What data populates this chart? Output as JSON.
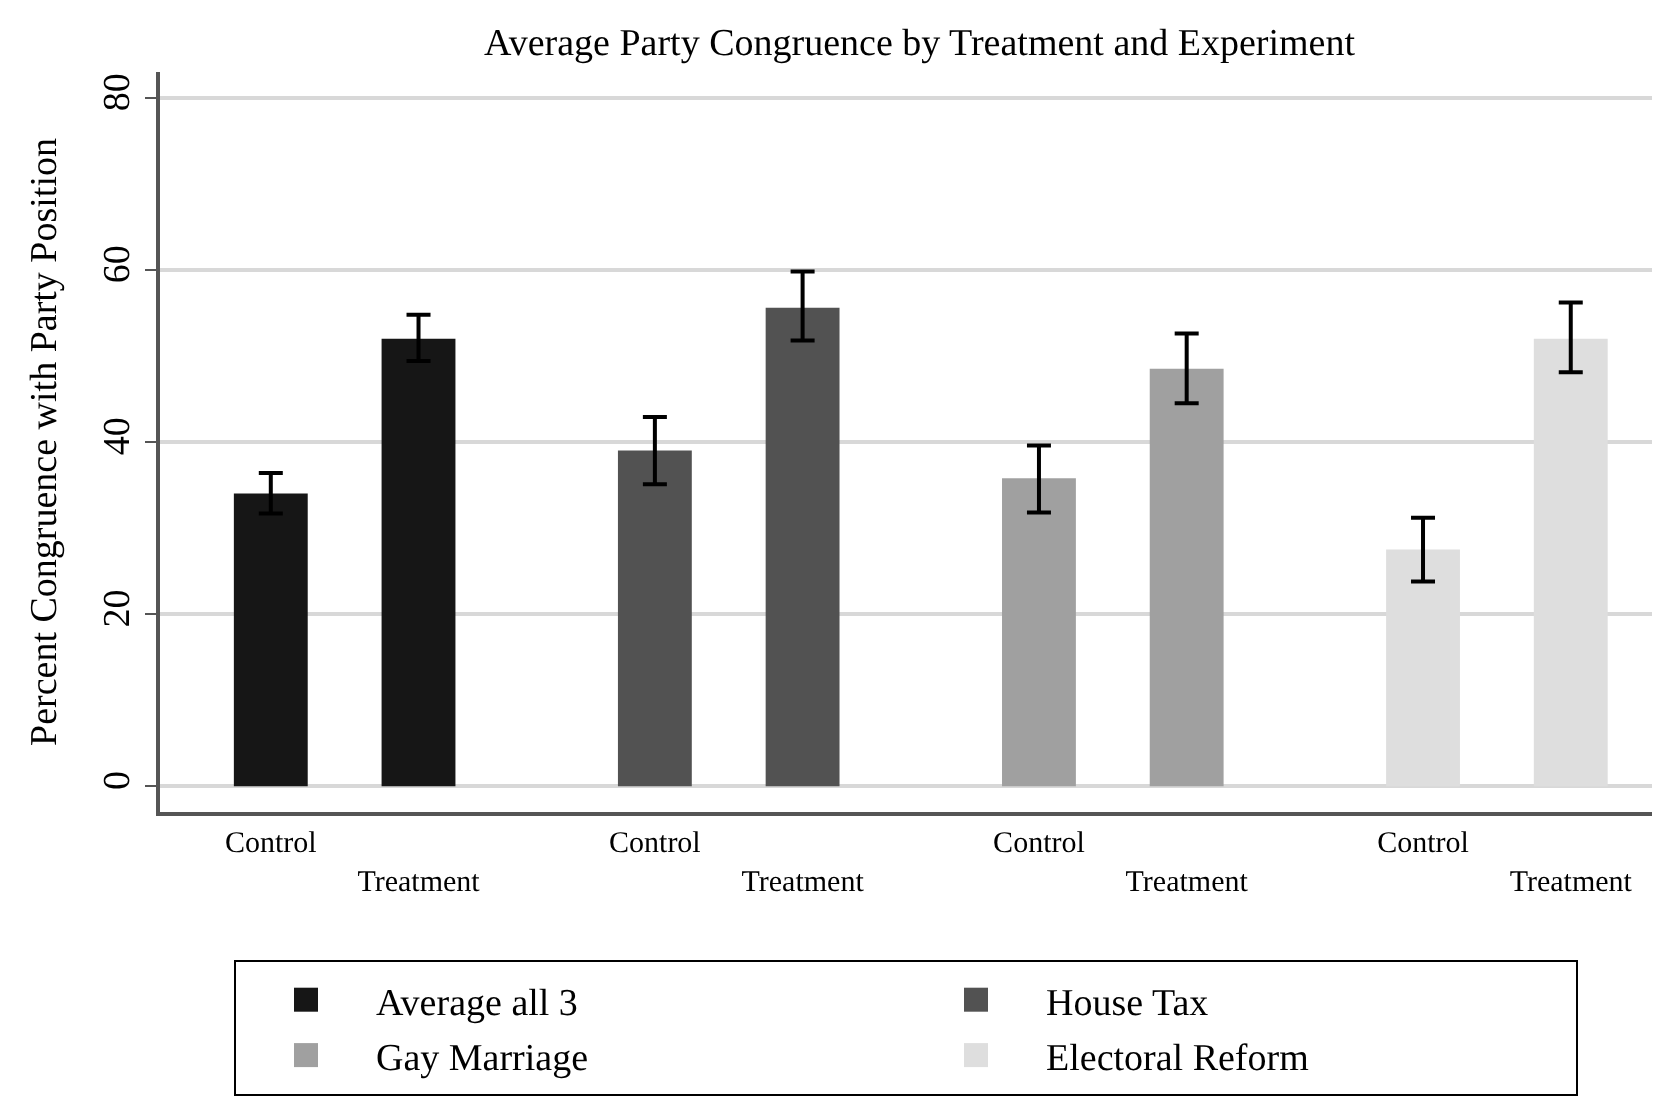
{
  "chart_data": {
    "type": "bar",
    "title": "Average Party Congruence by Treatment and Experiment",
    "ylabel": "Percent Congruence with Party Position",
    "categories": [
      "Control",
      "Treatment",
      "Control",
      "Treatment",
      "Control",
      "Treatment",
      "Control",
      "Treatment"
    ],
    "series": [
      {
        "name": "Average all 3",
        "color": "#161616",
        "values": [
          34.0,
          52.0,
          null,
          null,
          null,
          null,
          null,
          null
        ],
        "errors": [
          [
            31.7,
            36.4
          ],
          [
            49.4,
            54.8
          ],
          null,
          null,
          null,
          null,
          null,
          null
        ]
      },
      {
        "name": "House Tax",
        "color": "#525252",
        "values": [
          null,
          null,
          39.0,
          55.6,
          null,
          null,
          null,
          null
        ],
        "errors": [
          null,
          null,
          [
            35.1,
            42.9
          ],
          [
            51.8,
            59.8
          ],
          null,
          null,
          null,
          null
        ]
      },
      {
        "name": "Gay Marriage",
        "color": "#a0a0a0",
        "values": [
          null,
          null,
          null,
          null,
          35.8,
          48.5,
          null,
          null
        ],
        "errors": [
          null,
          null,
          null,
          null,
          [
            31.8,
            39.6
          ],
          [
            44.5,
            52.6
          ],
          null,
          null
        ]
      },
      {
        "name": "Electoral Reform",
        "color": "#dedede",
        "values": [
          null,
          null,
          null,
          null,
          null,
          null,
          27.5,
          52.0
        ],
        "errors": [
          null,
          null,
          null,
          null,
          null,
          null,
          [
            23.8,
            31.2
          ],
          [
            48.1,
            56.2
          ]
        ]
      }
    ],
    "ylim": [
      -3,
      83
    ],
    "yticks": [
      0,
      20,
      40,
      60,
      80
    ],
    "grid": "y",
    "legend": "bottom"
  }
}
